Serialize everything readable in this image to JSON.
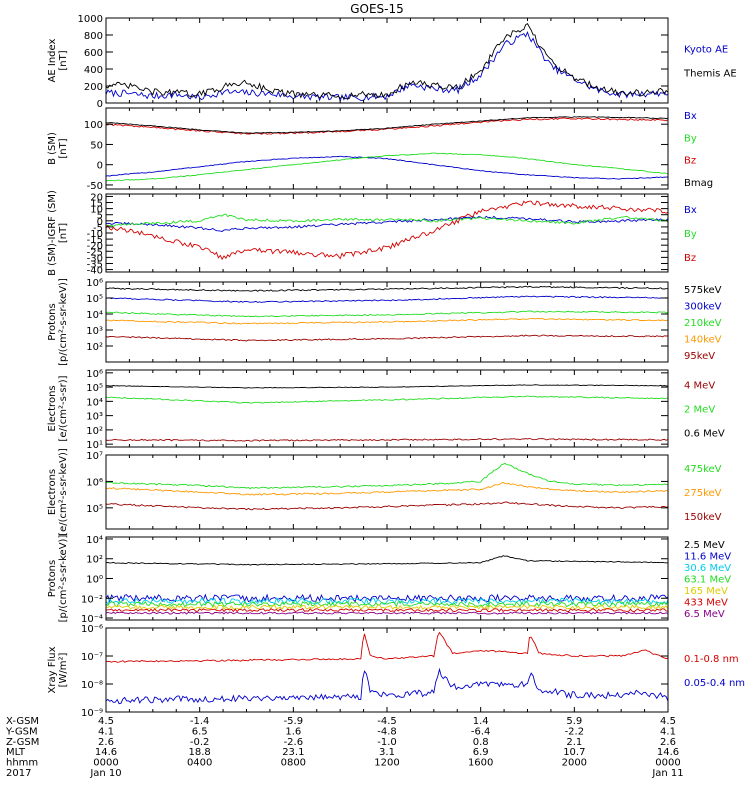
{
  "title": "GOES-15",
  "colors": {
    "black": "#000000",
    "red": "#d40000",
    "green": "#22dd22",
    "blue": "#0000cc",
    "orange": "#ff9900",
    "darkred": "#990000",
    "gold": "#ddcc00",
    "cyan": "#00ccee",
    "purple": "#880088"
  },
  "chart_data": [
    {
      "type": "line",
      "ylabel": "AE Index",
      "yunit": "[nT]",
      "ylim": [
        0,
        1000
      ],
      "yscale": "linear",
      "ytick_values": [
        0,
        200,
        400,
        600,
        800,
        1000
      ],
      "ytick_labels": [
        "0",
        "200",
        "400",
        "600",
        "800",
        "1000"
      ],
      "series": [
        {
          "name": "Kyoto AE",
          "color": "#0000cc",
          "noise": 40,
          "x": [
            0,
            1,
            2,
            3,
            4,
            5,
            6,
            7,
            8,
            9,
            10,
            11,
            12,
            13,
            14,
            15,
            16,
            17,
            18,
            19,
            20,
            21,
            22,
            23,
            24
          ],
          "y": [
            120,
            110,
            80,
            100,
            60,
            130,
            120,
            110,
            80,
            70,
            60,
            70,
            80,
            220,
            170,
            150,
            330,
            680,
            820,
            430,
            280,
            150,
            100,
            110,
            120
          ]
        },
        {
          "name": "Themis AE",
          "color": "#000000",
          "noise": 40,
          "x": [
            0,
            1,
            2,
            3,
            4,
            5,
            6,
            7,
            8,
            9,
            10,
            11,
            12,
            13,
            14,
            15,
            16,
            17,
            18,
            19,
            20,
            21,
            22,
            23,
            24
          ],
          "y": [
            210,
            200,
            130,
            120,
            100,
            190,
            250,
            150,
            100,
            90,
            80,
            100,
            90,
            250,
            200,
            180,
            380,
            760,
            900,
            480,
            300,
            180,
            120,
            120,
            140
          ]
        }
      ]
    },
    {
      "type": "line",
      "ylabel": "B (SM)",
      "yunit": "[nT]",
      "ylim": [
        -60,
        140
      ],
      "yscale": "linear",
      "ytick_values": [
        -50,
        0,
        50,
        100
      ],
      "ytick_labels": [
        "-50",
        "0",
        "50",
        "100"
      ],
      "series": [
        {
          "name": "Bx",
          "color": "#0000cc",
          "noise": 1,
          "x": [
            0,
            2,
            4,
            6,
            8,
            10,
            12,
            14,
            16,
            18,
            20,
            22,
            24
          ],
          "y": [
            -28,
            -18,
            -5,
            8,
            16,
            20,
            15,
            0,
            -15,
            -25,
            -32,
            -35,
            -30
          ]
        },
        {
          "name": "By",
          "color": "#22dd22",
          "noise": 1,
          "x": [
            0,
            2,
            4,
            6,
            8,
            10,
            12,
            14,
            16,
            18,
            20,
            22,
            24
          ],
          "y": [
            -40,
            -35,
            -25,
            -12,
            0,
            12,
            22,
            28,
            25,
            15,
            0,
            -10,
            -22
          ]
        },
        {
          "name": "Bz",
          "color": "#d40000",
          "noise": 2,
          "x": [
            0,
            2,
            4,
            6,
            8,
            10,
            12,
            14,
            16,
            18,
            20,
            22,
            24
          ],
          "y": [
            100,
            92,
            84,
            76,
            78,
            82,
            88,
            96,
            105,
            112,
            114,
            112,
            110
          ]
        },
        {
          "name": "Bmag",
          "color": "#000000",
          "noise": 1,
          "x": [
            0,
            2,
            4,
            6,
            8,
            10,
            12,
            14,
            16,
            18,
            20,
            22,
            24
          ],
          "y": [
            104,
            96,
            86,
            78,
            80,
            84,
            90,
            100,
            108,
            116,
            118,
            117,
            114
          ]
        }
      ]
    },
    {
      "type": "line",
      "ylabel": "B (SM)-IGRF (SM)",
      "yunit": "[nT]",
      "ylim": [
        -42,
        22
      ],
      "yscale": "linear",
      "ytick_values": [
        -40,
        -35,
        -30,
        -25,
        -20,
        -15,
        -10,
        -5,
        0,
        5,
        10,
        15,
        20
      ],
      "ytick_labels": [
        "-40",
        "-35",
        "-30",
        "-25",
        "-20",
        "-15",
        "-10",
        "-5",
        "0",
        "5",
        "10",
        "15",
        "20"
      ],
      "series": [
        {
          "name": "Bx",
          "color": "#0000cc",
          "noise": 1,
          "x": [
            0,
            2,
            4,
            5,
            6,
            8,
            10,
            12,
            14,
            16,
            18,
            20,
            22,
            24
          ],
          "y": [
            -2,
            -3,
            -6,
            -8,
            -6,
            -5,
            -3,
            -1,
            1,
            3,
            2,
            -1,
            0,
            1
          ]
        },
        {
          "name": "By",
          "color": "#22dd22",
          "noise": 1,
          "x": [
            0,
            2,
            4,
            5,
            6,
            8,
            10,
            12,
            14,
            16,
            18,
            20,
            22,
            24
          ],
          "y": [
            -4,
            -2,
            0,
            5,
            1,
            0,
            1,
            1,
            0,
            2,
            0,
            -2,
            3,
            0
          ]
        },
        {
          "name": "Bz",
          "color": "#d40000",
          "noise": 2,
          "x": [
            0,
            2,
            4,
            5,
            6,
            8,
            10,
            12,
            14,
            16,
            18,
            20,
            22,
            24
          ],
          "y": [
            -5,
            -12,
            -22,
            -30,
            -24,
            -26,
            -29,
            -22,
            -8,
            8,
            15,
            12,
            10,
            8
          ]
        }
      ]
    },
    {
      "type": "line",
      "ylabel": "Protons",
      "yunit": "[p/(cm²-s-sr-keV)]",
      "ylim": [
        1,
        6
      ],
      "yscale": "log",
      "ytick_values": [
        2,
        3,
        4,
        5,
        6
      ],
      "ytick_labels": [
        "10²",
        "10³",
        "10⁴",
        "10⁵",
        "10⁶"
      ],
      "series": [
        {
          "name": "575keV",
          "color": "#000000",
          "noise": 0.04,
          "x": [
            0,
            6,
            12,
            18,
            24
          ],
          "y": [
            5.6,
            5.45,
            5.55,
            5.7,
            5.6
          ]
        },
        {
          "name": "300keV",
          "color": "#0000cc",
          "noise": 0.04,
          "x": [
            0,
            6,
            12,
            18,
            24
          ],
          "y": [
            5.0,
            4.75,
            4.85,
            5.1,
            5.0
          ]
        },
        {
          "name": "210keV",
          "color": "#22dd22",
          "noise": 0.04,
          "x": [
            0,
            6,
            12,
            18,
            24
          ],
          "y": [
            4.1,
            3.85,
            3.95,
            4.15,
            4.1
          ]
        },
        {
          "name": "140keV",
          "color": "#ff9900",
          "noise": 0.04,
          "x": [
            0,
            6,
            12,
            18,
            24
          ],
          "y": [
            3.6,
            3.4,
            3.5,
            3.7,
            3.6
          ]
        },
        {
          "name": "95keV",
          "color": "#990000",
          "noise": 0.04,
          "x": [
            0,
            6,
            12,
            18,
            24
          ],
          "y": [
            2.6,
            2.35,
            2.45,
            2.65,
            2.6
          ]
        }
      ]
    },
    {
      "type": "line",
      "ylabel": "Electrons",
      "yunit": "[e/(cm²-s-sr)]",
      "ylim": [
        0.8,
        6.2
      ],
      "yscale": "log",
      "ytick_values": [
        1,
        2,
        3,
        4,
        5,
        6
      ],
      "ytick_labels": [
        "10¹",
        "10²",
        "10³",
        "10⁴",
        "10⁵",
        "10⁶"
      ],
      "series": [
        {
          "name": "4 MeV",
          "color": "#990000",
          "noise": 0.05,
          "x": [
            0,
            6,
            12,
            18,
            24
          ],
          "y": [
            1.3,
            1.25,
            1.3,
            1.35,
            1.3
          ]
        },
        {
          "name": "2 MeV",
          "color": "#22dd22",
          "noise": 0.04,
          "x": [
            0,
            6,
            12,
            18,
            24
          ],
          "y": [
            4.3,
            3.9,
            4.1,
            4.35,
            4.2
          ]
        },
        {
          "name": "0.6 MeV",
          "color": "#000000",
          "noise": 0.02,
          "x": [
            0,
            6,
            12,
            18,
            24
          ],
          "y": [
            5.1,
            4.95,
            5.0,
            5.15,
            5.1
          ]
        }
      ]
    },
    {
      "type": "line",
      "ylabel": "Electrons",
      "yunit": "[e/(cm²-s-sr-keV)]",
      "ylim": [
        4.2,
        7
      ],
      "yscale": "log",
      "ytick_values": [
        5,
        6,
        7
      ],
      "ytick_labels": [
        "10⁵",
        "10⁶",
        "10⁷"
      ],
      "series": [
        {
          "name": "475keV",
          "color": "#22dd22",
          "noise": 0.03,
          "x": [
            0,
            4,
            6,
            10,
            12,
            14,
            16,
            17,
            18,
            19,
            20,
            22,
            24
          ],
          "y": [
            5.95,
            5.85,
            5.75,
            5.8,
            5.85,
            5.9,
            6.0,
            6.7,
            6.3,
            6.0,
            5.9,
            5.85,
            5.9
          ]
        },
        {
          "name": "275keV",
          "color": "#ff9900",
          "noise": 0.03,
          "x": [
            0,
            4,
            6,
            10,
            12,
            14,
            16,
            17,
            18,
            19,
            20,
            22,
            24
          ],
          "y": [
            5.75,
            5.6,
            5.5,
            5.55,
            5.6,
            5.65,
            5.7,
            5.95,
            5.8,
            5.7,
            5.65,
            5.6,
            5.65
          ]
        },
        {
          "name": "150keV",
          "color": "#990000",
          "noise": 0.03,
          "x": [
            0,
            4,
            6,
            10,
            12,
            14,
            16,
            17,
            18,
            19,
            20,
            22,
            24
          ],
          "y": [
            5.15,
            5.0,
            4.95,
            5.0,
            5.05,
            5.1,
            5.15,
            5.2,
            5.15,
            5.1,
            5.05,
            5.0,
            5.05
          ]
        }
      ]
    },
    {
      "type": "line",
      "ylabel": "Protons",
      "yunit": "[p/(cm²-s-sr-keV)]",
      "ylim": [
        -4.2,
        4.2
      ],
      "yscale": "log",
      "ytick_values": [
        -4,
        -2,
        0,
        2,
        4
      ],
      "ytick_labels": [
        "10⁻⁴",
        "10⁻²",
        "10⁰",
        "10²",
        "10⁴"
      ],
      "series": [
        {
          "name": "2.5 MeV",
          "color": "#000000",
          "noise": 0.05,
          "x": [
            0,
            6,
            12,
            16,
            17,
            18,
            24
          ],
          "y": [
            1.6,
            1.4,
            1.5,
            1.6,
            2.3,
            1.8,
            1.6
          ]
        },
        {
          "name": "11.6 MeV",
          "color": "#0000cc",
          "noise": 0.35,
          "x": [
            0,
            24
          ],
          "y": [
            -2.0,
            -2.0
          ]
        },
        {
          "name": "30.6 MeV",
          "color": "#00ccee",
          "noise": 0.3,
          "x": [
            0,
            24
          ],
          "y": [
            -2.3,
            -2.3
          ]
        },
        {
          "name": "63.1 MeV",
          "color": "#22dd22",
          "noise": 0.25,
          "x": [
            0,
            24
          ],
          "y": [
            -2.6,
            -2.6
          ]
        },
        {
          "name": "165 MeV",
          "color": "#ddcc00",
          "noise": 0.2,
          "x": [
            0,
            24
          ],
          "y": [
            -2.9,
            -2.9
          ]
        },
        {
          "name": "433 MeV",
          "color": "#d40000",
          "noise": 0.15,
          "x": [
            0,
            24
          ],
          "y": [
            -3.2,
            -3.2
          ]
        },
        {
          "name": "6.5 MeV",
          "color": "#880088",
          "noise": 0.1,
          "x": [
            0,
            24
          ],
          "y": [
            -3.5,
            -3.5
          ]
        }
      ]
    },
    {
      "type": "line",
      "ylabel": "Xray Flux",
      "yunit": "[W/m²]",
      "ylim": [
        -9,
        -6
      ],
      "yscale": "log",
      "ytick_values": [
        -9,
        -8,
        -7,
        -6
      ],
      "ytick_labels": [
        "10⁻⁹",
        "10⁻⁸",
        "10⁻⁷",
        "10⁻⁶"
      ],
      "series": [
        {
          "name": "0.1-0.8 nm",
          "color": "#d40000",
          "noise": 0.03,
          "x": [
            0,
            6,
            10.9,
            11,
            11.3,
            12,
            14,
            14.2,
            14.8,
            16,
            18,
            18.1,
            18.5,
            20,
            22,
            23,
            24
          ],
          "y": [
            -7.2,
            -7.15,
            -7.1,
            -6.1,
            -7.0,
            -7.1,
            -7.0,
            -6.1,
            -6.9,
            -6.8,
            -6.9,
            -6.2,
            -6.9,
            -7.0,
            -7.0,
            -6.8,
            -7.1
          ]
        },
        {
          "name": "0.05-0.4 nm",
          "color": "#0000cc",
          "noise": 0.12,
          "x": [
            0,
            6,
            10.9,
            11,
            11.3,
            12,
            14,
            14.2,
            14.8,
            16,
            18,
            18.1,
            18.5,
            20,
            22,
            23,
            24
          ],
          "y": [
            -8.6,
            -8.5,
            -8.45,
            -7.3,
            -8.3,
            -8.4,
            -8.3,
            -7.5,
            -8.1,
            -8.0,
            -8.0,
            -7.6,
            -8.2,
            -8.4,
            -8.4,
            -8.3,
            -8.5
          ]
        }
      ]
    }
  ],
  "xaxis": {
    "range_hours": [
      0,
      24
    ],
    "row_labels": [
      "X-GSM",
      "Y-GSM",
      "Z-GSM",
      "MLT",
      "hhmm",
      "2017"
    ],
    "columns": [
      {
        "hours": 0,
        "values": [
          "4.5",
          "4.1",
          "2.6",
          "14.6",
          "0000",
          "Jan 10"
        ]
      },
      {
        "hours": 4,
        "values": [
          "-1.4",
          "6.5",
          "-0.2",
          "18.8",
          "0400",
          ""
        ]
      },
      {
        "hours": 8,
        "values": [
          "-5.9",
          "1.6",
          "-2.6",
          "23.1",
          "0800",
          ""
        ]
      },
      {
        "hours": 12,
        "values": [
          "-4.5",
          "-4.8",
          "-1.0",
          "3.1",
          "1200",
          ""
        ]
      },
      {
        "hours": 16,
        "values": [
          "1.4",
          "-6.4",
          "0.8",
          "6.9",
          "1600",
          ""
        ]
      },
      {
        "hours": 20,
        "values": [
          "5.9",
          "-2.2",
          "2.1",
          "10.7",
          "2000",
          ""
        ]
      },
      {
        "hours": 24,
        "values": [
          "4.5",
          "4.1",
          "2.6",
          "14.6",
          "0000",
          "Jan 11"
        ]
      }
    ]
  }
}
